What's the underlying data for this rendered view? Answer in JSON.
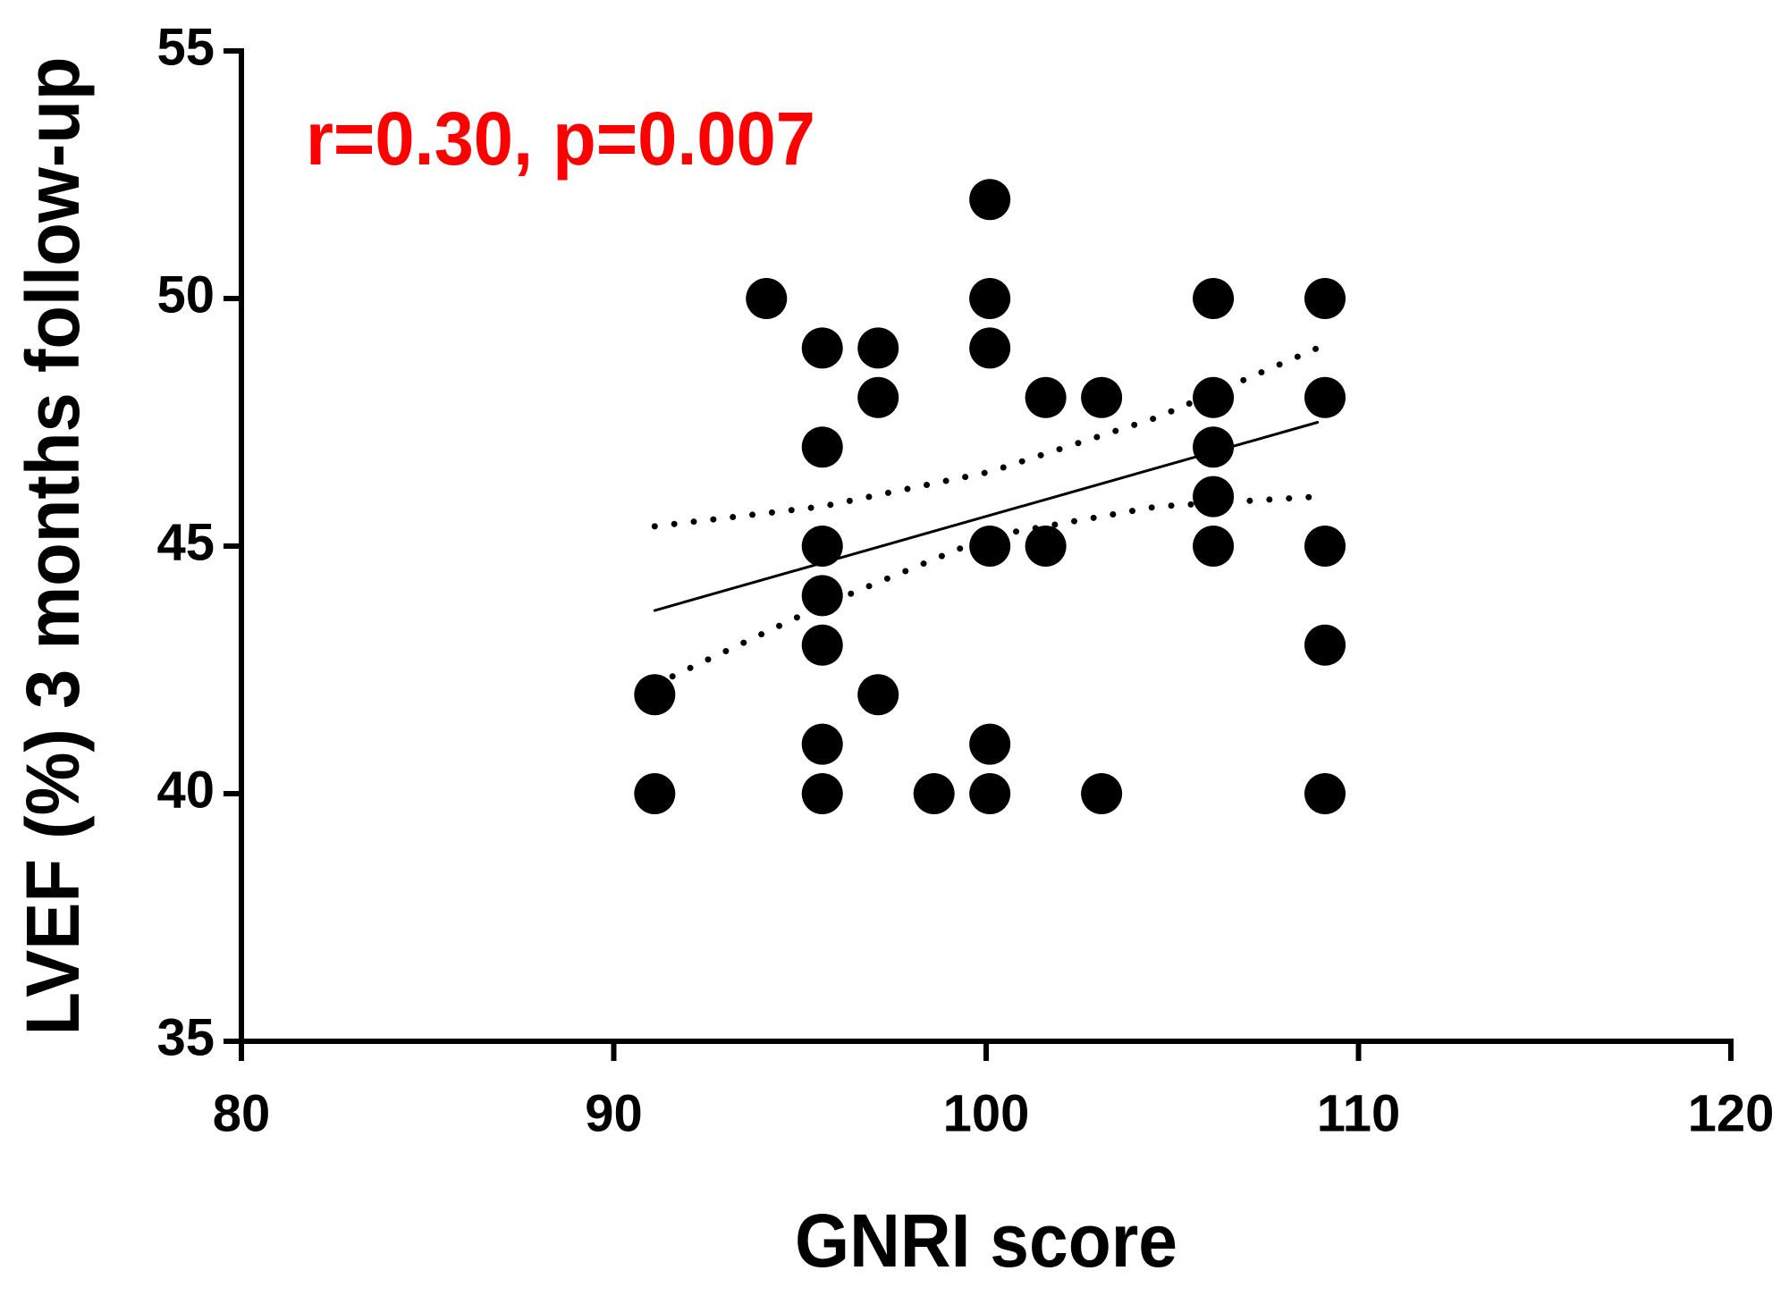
{
  "chart_data": {
    "type": "scatter",
    "annotation": "r=0.30, p=0.007",
    "x_label": "GNRI score",
    "y_label": "LVEF (%) 3 months follow-up",
    "x": [
      91.1,
      91.1,
      94.1,
      95.6,
      95.6,
      95.6,
      95.6,
      95.6,
      95.6,
      95.6,
      97.1,
      97.1,
      97.1,
      98.6,
      100.1,
      100.1,
      100.1,
      100.1,
      100.1,
      100.1,
      101.6,
      101.6,
      103.1,
      103.1,
      106.1,
      106.1,
      106.1,
      106.1,
      106.1,
      109.1,
      109.1,
      109.1,
      109.1,
      109.1
    ],
    "y": [
      42,
      40,
      50,
      49,
      47,
      45,
      44,
      43,
      41,
      40,
      49,
      48,
      42,
      40,
      52,
      50,
      49,
      45,
      41,
      40,
      48,
      45,
      48,
      40,
      50,
      48,
      47,
      46,
      45,
      50,
      48,
      45,
      43,
      40
    ],
    "color": "#000000",
    "annotation_color": "#ff0000",
    "fit_line": {
      "x": [
        91.1,
        108.9
      ],
      "y": [
        43.7,
        47.5
      ]
    },
    "ci_upper": {
      "x": [
        91.1,
        95.6,
        100.1,
        104.6,
        108.9
      ],
      "y": [
        45.4,
        45.8,
        46.5,
        47.6,
        49.0
      ]
    },
    "ci_lower": {
      "x": [
        91.1,
        95.6,
        100.1,
        104.6,
        108.9
      ],
      "y": [
        42.2,
        43.8,
        45.2,
        45.8,
        46.0
      ]
    },
    "xlim": [
      80,
      120
    ],
    "xticks": [
      80,
      90,
      100,
      110,
      120
    ],
    "ylim": [
      35,
      55
    ],
    "yticks": [
      35,
      40,
      45,
      50,
      55
    ]
  }
}
